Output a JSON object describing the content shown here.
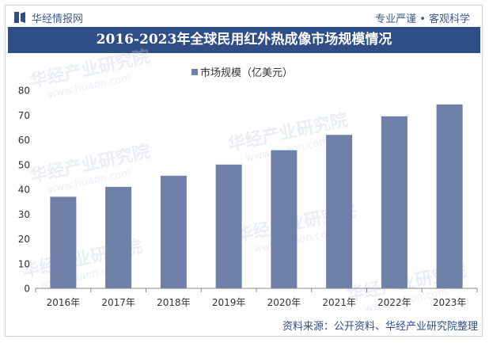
{
  "header": {
    "logo_text": "华经情报网",
    "slogan": "专业严谨 • 客观科学"
  },
  "watermark_text": "华经产业研究院",
  "watermark_url": "www.huaon.com",
  "footer": {
    "source": "资料来源：公开资料、华经产业研究院整理"
  },
  "chart_data": {
    "type": "bar",
    "title": "2016-2023年全球民用红外热成像市场规模情况",
    "legend": "市场规模（亿美元）",
    "categories": [
      "2016年",
      "2017年",
      "2018年",
      "2019年",
      "2020年",
      "2021年",
      "2022年",
      "2023年"
    ],
    "values": [
      37,
      41,
      45.5,
      50,
      55.8,
      62,
      69.5,
      74.3
    ],
    "ylim": [
      0,
      80
    ],
    "yticks": [
      0,
      10,
      20,
      30,
      40,
      50,
      60,
      70,
      80
    ],
    "xlabel": "",
    "ylabel": "",
    "bar_color": "#6e80a8",
    "grid": false
  }
}
